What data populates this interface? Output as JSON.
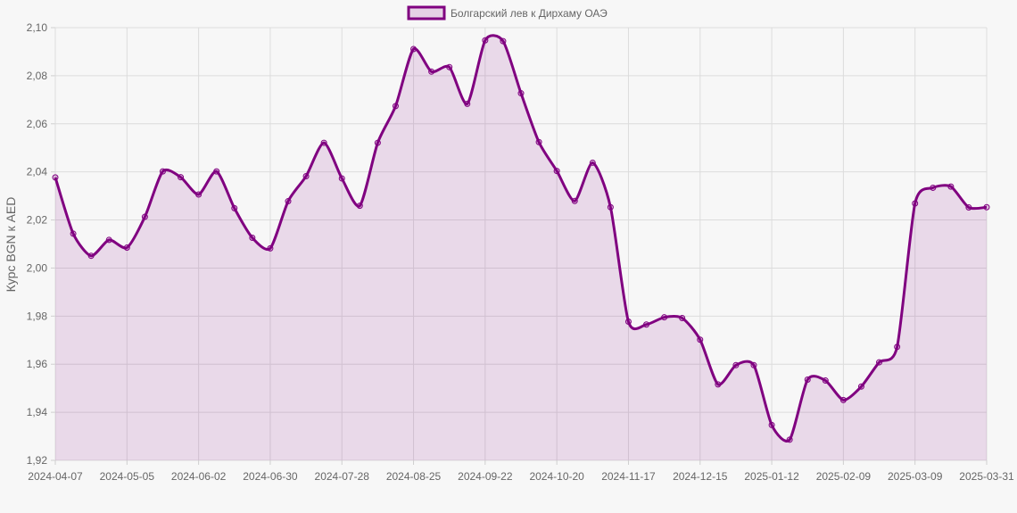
{
  "chart_data": {
    "type": "area",
    "series": [
      {
        "name": "Болгарский лев к Дирхаму ОАЭ",
        "color": "#800080",
        "fill": "rgba(128,0,128,0.12)",
        "values": [
          2.0377,
          2.0143,
          2.0051,
          2.0117,
          2.0085,
          2.0213,
          2.0402,
          2.0378,
          2.0306,
          2.0402,
          2.0249,
          2.0126,
          2.0082,
          2.0278,
          2.0382,
          2.0521,
          2.0373,
          2.0259,
          2.0521,
          2.0674,
          2.0911,
          2.0817,
          2.0836,
          2.0683,
          2.0947,
          2.0944,
          2.0727,
          2.0524,
          2.0404,
          2.0279,
          2.0438,
          2.0253,
          1.9777,
          1.9765,
          1.9795,
          1.9792,
          1.9702,
          1.9516,
          1.9596,
          1.9596,
          1.9347,
          1.9286,
          1.9536,
          1.9532,
          1.9451,
          1.9507,
          1.9608,
          1.9672,
          2.0269,
          2.0334,
          2.0339,
          2.0252,
          2.0253
        ]
      }
    ],
    "x_tick_labels": [
      "2024-04-07",
      "2024-05-05",
      "2024-06-02",
      "2024-06-30",
      "2024-07-28",
      "2024-08-25",
      "2024-09-22",
      "2024-10-20",
      "2024-11-17",
      "2024-12-15",
      "2025-01-12",
      "2025-02-09",
      "2025-03-09",
      "2025-03-31"
    ],
    "y_tick_labels": [
      "1,92",
      "1,94",
      "1,96",
      "1,98",
      "2,00",
      "2,02",
      "2,04",
      "2,06",
      "2,08",
      "2,10"
    ],
    "ylabel": "Курс BGN к AED",
    "ylim": [
      1.92,
      2.1
    ],
    "grid": true,
    "legend_position": "top-center"
  }
}
